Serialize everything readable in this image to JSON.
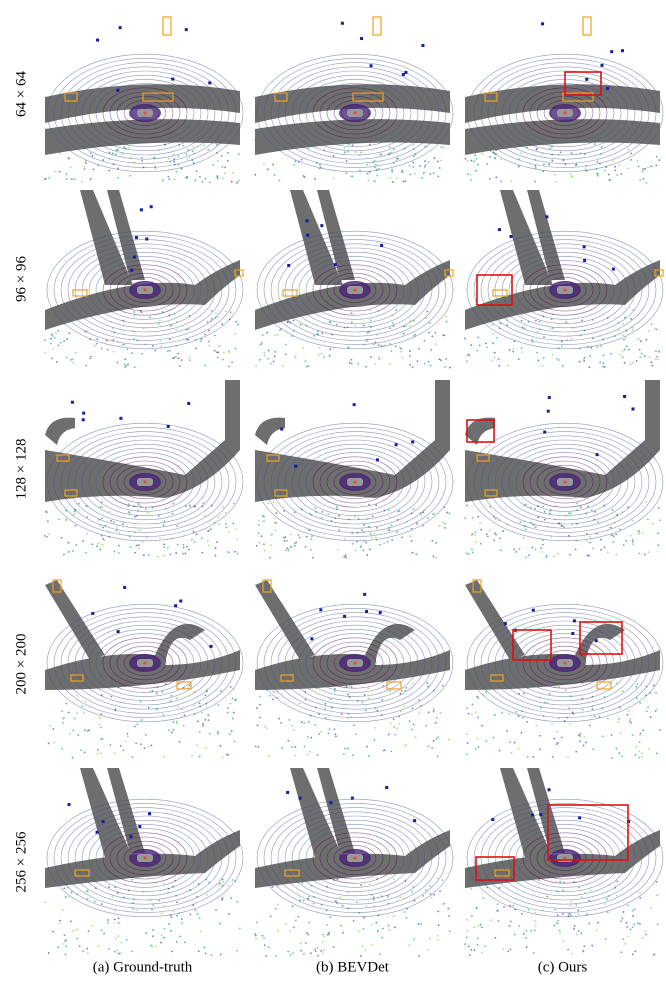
{
  "figure": {
    "row_labels": [
      "64 × 64",
      "96 × 96",
      "128 × 128",
      "200 × 200",
      "256 × 256"
    ],
    "captions": [
      "(a) Ground-truth",
      "(b) BEVDet",
      "(c) Ours"
    ]
  }
}
